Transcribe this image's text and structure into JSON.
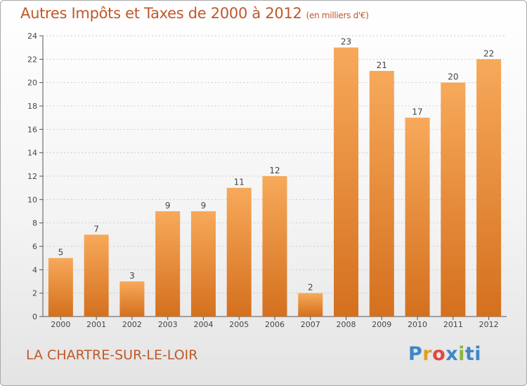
{
  "header": {
    "title": "Autres Impôts et Taxes de 2000 à 2012",
    "subtitle": "(en milliers d'€)"
  },
  "footer": {
    "commune": "LA CHARTRE-SUR-LE-LOIR",
    "brand": [
      "P",
      "r",
      "o",
      "x",
      "i",
      "ti"
    ]
  },
  "colors": {
    "bar_light": "#f7a95a",
    "bar_dark": "#d4701e",
    "axis": "#555555",
    "grid": "#cccccc",
    "title": "#c0582a"
  },
  "chart_data": {
    "type": "bar",
    "categories": [
      "2000",
      "2001",
      "2002",
      "2003",
      "2004",
      "2005",
      "2006",
      "2007",
      "2008",
      "2009",
      "2010",
      "2011",
      "2012"
    ],
    "values": [
      5,
      7,
      3,
      9,
      9,
      11,
      12,
      2,
      23,
      21,
      17,
      20,
      22
    ],
    "yticks": [
      0,
      2,
      4,
      6,
      8,
      10,
      12,
      14,
      16,
      18,
      20,
      22,
      24
    ],
    "ylim": [
      0,
      24
    ],
    "grid": "horizontal",
    "data_labels": true
  }
}
